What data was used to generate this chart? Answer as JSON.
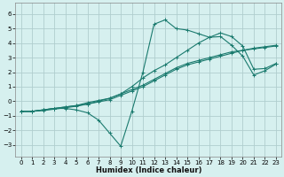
{
  "xlabel": "Humidex (Indice chaleur)",
  "bg_color": "#d6f0ef",
  "grid_color": "#b0cece",
  "line_color": "#1a7a6e",
  "xlim": [
    -0.5,
    23.5
  ],
  "ylim": [
    -3.8,
    6.8
  ],
  "xticks": [
    0,
    1,
    2,
    3,
    4,
    5,
    6,
    7,
    8,
    9,
    10,
    11,
    12,
    13,
    14,
    15,
    16,
    17,
    18,
    19,
    20,
    21,
    22,
    23
  ],
  "yticks": [
    -3,
    -2,
    -1,
    0,
    1,
    2,
    3,
    4,
    5,
    6
  ],
  "series": [
    {
      "x": [
        0,
        1,
        2,
        3,
        4,
        5,
        6,
        7,
        8,
        9,
        10,
        11,
        12,
        13,
        14,
        15,
        16,
        17,
        18,
        19,
        20,
        21,
        22,
        23
      ],
      "y": [
        -0.7,
        -0.7,
        -0.6,
        -0.5,
        -0.4,
        -0.3,
        -0.1,
        0.05,
        0.2,
        0.5,
        0.8,
        1.1,
        1.5,
        1.9,
        2.3,
        2.6,
        2.8,
        3.0,
        3.2,
        3.4,
        3.5,
        3.6,
        3.7,
        3.8
      ]
    },
    {
      "x": [
        0,
        1,
        2,
        3,
        4,
        5,
        6,
        7,
        8,
        9,
        10,
        11,
        12,
        13,
        14,
        15,
        16,
        17,
        18,
        19,
        20,
        21,
        22,
        23
      ],
      "y": [
        -0.7,
        -0.7,
        -0.6,
        -0.5,
        -0.4,
        -0.3,
        -0.2,
        -0.05,
        0.1,
        0.4,
        0.7,
        1.0,
        1.4,
        1.8,
        2.2,
        2.5,
        2.7,
        2.9,
        3.1,
        3.3,
        3.5,
        3.65,
        3.75,
        3.85
      ]
    },
    {
      "x": [
        0,
        1,
        2,
        3,
        4,
        5,
        6,
        7,
        8,
        9,
        10,
        11,
        12,
        13,
        14,
        15,
        16,
        17,
        18,
        19,
        20,
        21,
        22,
        23
      ],
      "y": [
        -0.7,
        -0.7,
        -0.6,
        -0.5,
        -0.5,
        -0.6,
        -0.8,
        -1.3,
        -2.2,
        -3.1,
        -0.7,
        2.0,
        5.3,
        5.6,
        5.0,
        4.9,
        4.65,
        4.4,
        4.45,
        3.85,
        3.1,
        1.8,
        2.1,
        2.55
      ]
    },
    {
      "x": [
        0,
        1,
        2,
        3,
        4,
        5,
        6,
        7,
        8,
        9,
        10,
        11,
        12,
        13,
        14,
        15,
        16,
        17,
        18,
        19,
        20,
        21,
        22,
        23
      ],
      "y": [
        -0.7,
        -0.7,
        -0.65,
        -0.55,
        -0.45,
        -0.35,
        -0.2,
        0.0,
        0.2,
        0.5,
        1.0,
        1.6,
        2.1,
        2.5,
        3.0,
        3.5,
        4.0,
        4.4,
        4.7,
        4.45,
        3.8,
        2.2,
        2.25,
        2.6
      ]
    }
  ]
}
